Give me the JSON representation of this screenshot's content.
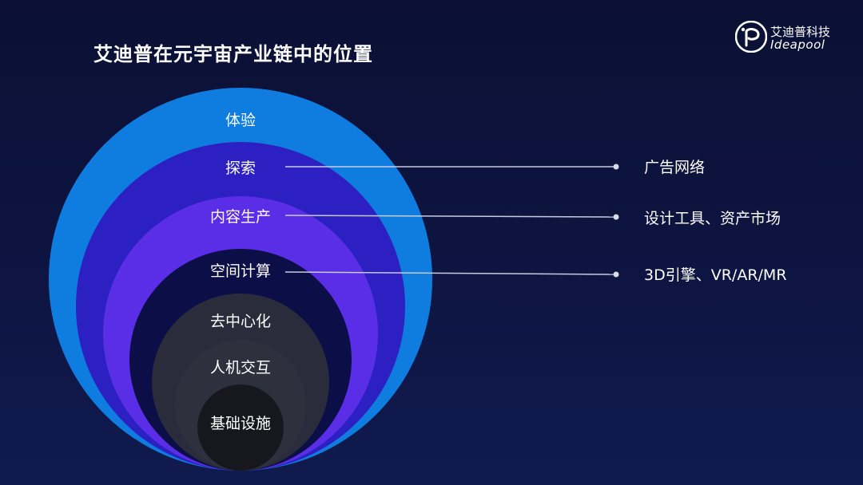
{
  "slide": {
    "title": "艾迪普在元宇宙产业链中的位置"
  },
  "logo": {
    "name_cn": "艾迪普科技",
    "name_en": "Ideapool"
  },
  "layers": [
    {
      "label": "体验",
      "color": "#0f7de0"
    },
    {
      "label": "探索",
      "color": "#2c20c2"
    },
    {
      "label": "内容生产",
      "color": "#5a2ee6"
    },
    {
      "label": "空间计算",
      "color": "#0c0e47"
    },
    {
      "label": "去中心化",
      "color": "#2a2c3c"
    },
    {
      "label": "人机交互",
      "color": "#2e303e"
    },
    {
      "label": "基础设施",
      "color": "#17181e"
    }
  ],
  "callouts": [
    {
      "layer": "探索",
      "text": "广告网络"
    },
    {
      "layer": "内容生产",
      "text": "设计工具、资产市场"
    },
    {
      "layer": "空间计算",
      "text": "3D引擎、VR/AR/MR"
    }
  ]
}
